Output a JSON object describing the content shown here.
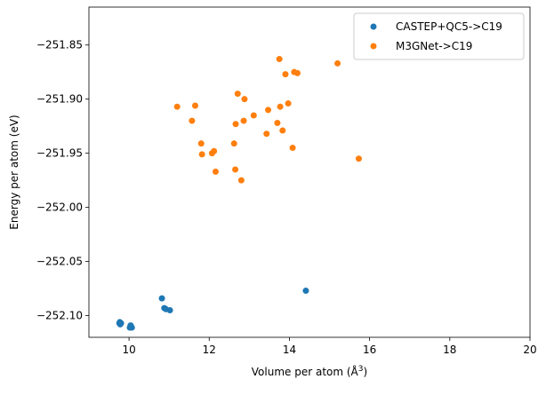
{
  "chart_data": {
    "type": "scatter",
    "xlabel": "Volume per atom (Å",
    "xlabel_sup": "3",
    "xlabel_tail": ")",
    "ylabel": "Energy per atom (eV)",
    "xlim": [
      9.0,
      20.0
    ],
    "ylim": [
      -252.12,
      -251.815
    ],
    "xticks": [
      10,
      12,
      14,
      16,
      18,
      20
    ],
    "xtick_labels": [
      "10",
      "12",
      "14",
      "16",
      "18",
      "20"
    ],
    "yticks": [
      -251.85,
      -251.9,
      -251.95,
      -252.0,
      -252.05,
      -252.1
    ],
    "ytick_labels": [
      "−251.85",
      "−251.90",
      "−251.95",
      "−252.00",
      "−252.05",
      "−252.10"
    ],
    "legend_position": "top-right",
    "series": [
      {
        "name": "CASTEP+QC5->C19",
        "color": "#1f77b4",
        "points": [
          [
            9.76,
            -252.107
          ],
          [
            9.78,
            -252.108
          ],
          [
            9.77,
            -252.106
          ],
          [
            9.8,
            -252.107
          ],
          [
            10.02,
            -252.111
          ],
          [
            10.05,
            -252.11
          ],
          [
            10.07,
            -252.111
          ],
          [
            10.04,
            -252.109
          ],
          [
            10.82,
            -252.084
          ],
          [
            10.88,
            -252.093
          ],
          [
            10.92,
            -252.094
          ],
          [
            11.02,
            -252.095
          ],
          [
            14.41,
            -252.077
          ]
        ]
      },
      {
        "name": "M3GNet->C19",
        "color": "#ff7f0e",
        "points": [
          [
            11.2,
            -251.907
          ],
          [
            11.57,
            -251.92
          ],
          [
            11.65,
            -251.906
          ],
          [
            11.8,
            -251.941
          ],
          [
            11.82,
            -251.951
          ],
          [
            12.07,
            -251.95
          ],
          [
            12.12,
            -251.948
          ],
          [
            12.16,
            -251.967
          ],
          [
            12.62,
            -251.941
          ],
          [
            12.65,
            -251.965
          ],
          [
            12.66,
            -251.923
          ],
          [
            12.71,
            -251.895
          ],
          [
            12.8,
            -251.975
          ],
          [
            12.86,
            -251.92
          ],
          [
            12.88,
            -251.9
          ],
          [
            13.11,
            -251.915
          ],
          [
            13.43,
            -251.932
          ],
          [
            13.47,
            -251.91
          ],
          [
            13.7,
            -251.922
          ],
          [
            13.75,
            -251.863
          ],
          [
            13.77,
            -251.907
          ],
          [
            13.83,
            -251.929
          ],
          [
            13.9,
            -251.877
          ],
          [
            13.97,
            -251.904
          ],
          [
            14.08,
            -251.945
          ],
          [
            14.12,
            -251.875
          ],
          [
            14.2,
            -251.876
          ],
          [
            15.2,
            -251.867
          ],
          [
            15.73,
            -251.955
          ]
        ]
      }
    ]
  }
}
